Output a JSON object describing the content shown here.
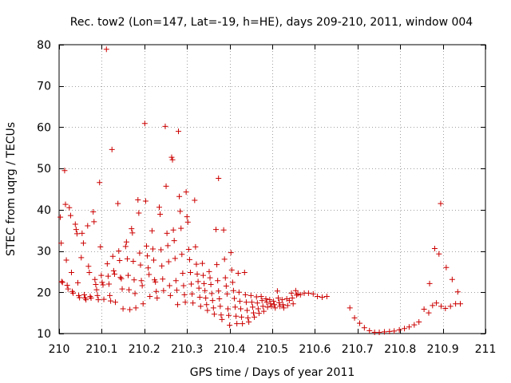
{
  "chart_data": {
    "type": "scatter",
    "title": "Rec. tow2 (Lon=147, Lat=-19, h=HE), days 209-210, 2011, window 004",
    "xlabel": "GPS time / Days of year 2011",
    "ylabel": "STEC from uqrg / TECUs",
    "xlim": [
      210,
      211
    ],
    "ylim": [
      10,
      80
    ],
    "xticks": [
      210,
      210.1,
      210.2,
      210.3,
      210.4,
      210.5,
      210.6,
      210.7,
      210.8,
      210.9,
      211
    ],
    "xtick_labels": [
      "210",
      "210.1",
      "210.2",
      "210.3",
      "210.4",
      "210.5",
      "210.6",
      "210.7",
      "210.8",
      "210.9",
      "211"
    ],
    "yticks": [
      10,
      20,
      30,
      40,
      50,
      60,
      70,
      80
    ],
    "ytick_labels": [
      "10",
      "20",
      "30",
      "40",
      "50",
      "60",
      "70",
      "80"
    ],
    "grid": true,
    "marker": "+",
    "color": "#cc0000",
    "series": [
      {
        "name": "STEC",
        "points": [
          [
            210.003,
            38.2
          ],
          [
            210.005,
            31.9
          ],
          [
            210.006,
            22.6
          ],
          [
            210.008,
            22.4
          ],
          [
            210.013,
            49.5
          ],
          [
            210.015,
            41.3
          ],
          [
            210.017,
            27.8
          ],
          [
            210.019,
            21.7
          ],
          [
            210.021,
            20.8
          ],
          [
            210.024,
            40.5
          ],
          [
            210.027,
            38.6
          ],
          [
            210.029,
            24.8
          ],
          [
            210.031,
            20.2
          ],
          [
            210.033,
            19.8
          ],
          [
            210.038,
            36.5
          ],
          [
            210.04,
            35.2
          ],
          [
            210.042,
            34.2
          ],
          [
            210.044,
            22.3
          ],
          [
            210.046,
            19.2
          ],
          [
            210.048,
            18.7
          ],
          [
            210.052,
            28.4
          ],
          [
            210.054,
            34.3
          ],
          [
            210.057,
            31.9
          ],
          [
            210.059,
            19.4
          ],
          [
            210.061,
            18.6
          ],
          [
            210.063,
            18.2
          ],
          [
            210.067,
            36.1
          ],
          [
            210.069,
            26.3
          ],
          [
            210.071,
            24.8
          ],
          [
            210.073,
            19.0
          ],
          [
            210.075,
            18.6
          ],
          [
            210.08,
            39.5
          ],
          [
            210.082,
            37.1
          ],
          [
            210.084,
            23.1
          ],
          [
            210.086,
            21.9
          ],
          [
            210.088,
            20.6
          ],
          [
            210.09,
            19.2
          ],
          [
            210.092,
            18.2
          ],
          [
            210.095,
            46.6
          ],
          [
            210.097,
            31.0
          ],
          [
            210.099,
            24.1
          ],
          [
            210.101,
            22.4
          ],
          [
            210.103,
            21.8
          ],
          [
            210.105,
            18.3
          ],
          [
            210.111,
            78.9
          ],
          [
            210.113,
            26.9
          ],
          [
            210.115,
            23.9
          ],
          [
            210.117,
            22.0
          ],
          [
            210.119,
            19.2
          ],
          [
            210.121,
            17.9
          ],
          [
            210.124,
            54.6
          ],
          [
            210.126,
            28.7
          ],
          [
            210.128,
            25.2
          ],
          [
            210.13,
            24.4
          ],
          [
            210.132,
            17.6
          ],
          [
            210.138,
            41.5
          ],
          [
            210.14,
            30.0
          ],
          [
            210.142,
            27.7
          ],
          [
            210.144,
            23.6
          ],
          [
            210.146,
            23.3
          ],
          [
            210.148,
            20.8
          ],
          [
            210.15,
            16.0
          ],
          [
            210.156,
            31.1
          ],
          [
            210.158,
            32.2
          ],
          [
            210.16,
            28.1
          ],
          [
            210.162,
            24.1
          ],
          [
            210.164,
            20.6
          ],
          [
            210.166,
            15.8
          ],
          [
            210.17,
            35.4
          ],
          [
            210.172,
            34.4
          ],
          [
            210.174,
            27.5
          ],
          [
            210.176,
            23.0
          ],
          [
            210.178,
            19.7
          ],
          [
            210.18,
            16.2
          ],
          [
            210.185,
            42.4
          ],
          [
            210.187,
            39.2
          ],
          [
            210.189,
            29.5
          ],
          [
            210.191,
            26.6
          ],
          [
            210.193,
            22.8
          ],
          [
            210.195,
            21.6
          ],
          [
            210.197,
            17.2
          ],
          [
            210.201,
            60.9
          ],
          [
            210.203,
            42.1
          ],
          [
            210.205,
            31.2
          ],
          [
            210.207,
            28.8
          ],
          [
            210.209,
            25.9
          ],
          [
            210.211,
            24.3
          ],
          [
            210.213,
            19.0
          ],
          [
            210.218,
            34.9
          ],
          [
            210.22,
            30.5
          ],
          [
            210.222,
            27.8
          ],
          [
            210.224,
            23.0
          ],
          [
            210.226,
            22.5
          ],
          [
            210.228,
            20.2
          ],
          [
            210.23,
            18.6
          ],
          [
            210.235,
            40.6
          ],
          [
            210.237,
            38.9
          ],
          [
            210.239,
            30.3
          ],
          [
            210.241,
            26.4
          ],
          [
            210.243,
            23.2
          ],
          [
            210.245,
            20.4
          ],
          [
            210.249,
            60.2
          ],
          [
            210.251,
            45.7
          ],
          [
            210.253,
            34.3
          ],
          [
            210.255,
            31.3
          ],
          [
            210.257,
            27.4
          ],
          [
            210.259,
            21.6
          ],
          [
            210.261,
            19.2
          ],
          [
            210.264,
            52.7
          ],
          [
            210.266,
            52.1
          ],
          [
            210.268,
            35.1
          ],
          [
            210.27,
            32.5
          ],
          [
            210.272,
            28.2
          ],
          [
            210.274,
            22.8
          ],
          [
            210.276,
            20.5
          ],
          [
            210.278,
            17.0
          ],
          [
            210.28,
            59.0
          ],
          [
            210.282,
            43.2
          ],
          [
            210.284,
            39.6
          ],
          [
            210.286,
            35.5
          ],
          [
            210.288,
            29.2
          ],
          [
            210.29,
            24.6
          ],
          [
            210.292,
            21.6
          ],
          [
            210.294,
            19.4
          ],
          [
            210.296,
            17.6
          ],
          [
            210.298,
            44.3
          ],
          [
            210.3,
            38.3
          ],
          [
            210.302,
            37.0
          ],
          [
            210.304,
            30.4
          ],
          [
            210.306,
            27.9
          ],
          [
            210.308,
            24.8
          ],
          [
            210.31,
            22.0
          ],
          [
            210.312,
            19.6
          ],
          [
            210.314,
            17.4
          ],
          [
            210.318,
            42.3
          ],
          [
            210.32,
            31.0
          ],
          [
            210.322,
            26.8
          ],
          [
            210.324,
            24.4
          ],
          [
            210.326,
            22.6
          ],
          [
            210.328,
            21.0
          ],
          [
            210.33,
            18.8
          ],
          [
            210.332,
            16.6
          ],
          [
            210.336,
            27.0
          ],
          [
            210.338,
            24.1
          ],
          [
            210.34,
            22.1
          ],
          [
            210.342,
            20.4
          ],
          [
            210.344,
            18.6
          ],
          [
            210.346,
            17.0
          ],
          [
            210.348,
            15.6
          ],
          [
            210.352,
            25.0
          ],
          [
            210.354,
            23.5
          ],
          [
            210.356,
            21.9
          ],
          [
            210.358,
            19.7
          ],
          [
            210.36,
            18.0
          ],
          [
            210.362,
            16.2
          ],
          [
            210.364,
            14.7
          ],
          [
            210.368,
            35.2
          ],
          [
            210.37,
            26.7
          ],
          [
            210.372,
            22.8
          ],
          [
            210.374,
            20.3
          ],
          [
            210.376,
            18.4
          ],
          [
            210.378,
            16.6
          ],
          [
            210.38,
            14.5
          ],
          [
            210.382,
            13.4
          ],
          [
            210.374,
            47.6
          ],
          [
            210.386,
            35.1
          ],
          [
            210.388,
            28.0
          ],
          [
            210.39,
            23.5
          ],
          [
            210.392,
            21.5
          ],
          [
            210.394,
            19.6
          ],
          [
            210.396,
            16.0
          ],
          [
            210.398,
            14.4
          ],
          [
            210.4,
            12.0
          ],
          [
            210.403,
            29.6
          ],
          [
            210.405,
            25.4
          ],
          [
            210.407,
            22.4
          ],
          [
            210.409,
            20.4
          ],
          [
            210.411,
            18.5
          ],
          [
            210.413,
            16.4
          ],
          [
            210.415,
            14.2
          ],
          [
            210.417,
            12.4
          ],
          [
            210.42,
            24.6
          ],
          [
            210.422,
            20.0
          ],
          [
            210.424,
            17.8
          ],
          [
            210.426,
            16.0
          ],
          [
            210.428,
            14.0
          ],
          [
            210.43,
            12.4
          ],
          [
            210.435,
            24.8
          ],
          [
            210.437,
            19.4
          ],
          [
            210.439,
            17.6
          ],
          [
            210.441,
            15.6
          ],
          [
            210.443,
            13.8
          ],
          [
            210.445,
            12.8
          ],
          [
            210.45,
            19.2
          ],
          [
            210.452,
            17.6
          ],
          [
            210.454,
            16.4
          ],
          [
            210.456,
            15.0
          ],
          [
            210.458,
            14.0
          ],
          [
            210.463,
            18.9
          ],
          [
            210.465,
            17.4
          ],
          [
            210.467,
            16.0
          ],
          [
            210.469,
            14.9
          ],
          [
            210.474,
            19.0
          ],
          [
            210.476,
            18.0
          ],
          [
            210.478,
            16.6
          ],
          [
            210.48,
            15.4
          ],
          [
            210.485,
            18.4
          ],
          [
            210.487,
            17.6
          ],
          [
            210.489,
            16.4
          ],
          [
            210.494,
            18.2
          ],
          [
            210.496,
            17.2
          ],
          [
            210.498,
            16.6
          ],
          [
            210.503,
            17.8
          ],
          [
            210.505,
            17.0
          ],
          [
            210.507,
            16.2
          ],
          [
            210.512,
            20.3
          ],
          [
            210.514,
            18.6
          ],
          [
            210.516,
            17.5
          ],
          [
            210.518,
            16.6
          ],
          [
            210.523,
            18.2
          ],
          [
            210.525,
            17.0
          ],
          [
            210.527,
            16.2
          ],
          [
            210.534,
            18.4
          ],
          [
            210.536,
            16.8
          ],
          [
            210.54,
            18.0
          ],
          [
            210.545,
            19.8
          ],
          [
            210.547,
            18.6
          ],
          [
            210.549,
            17.2
          ],
          [
            210.555,
            20.4
          ],
          [
            210.557,
            19.3
          ],
          [
            210.56,
            19.6
          ],
          [
            210.566,
            19.4
          ],
          [
            210.575,
            19.8
          ],
          [
            210.585,
            19.8
          ],
          [
            210.596,
            19.6
          ],
          [
            210.606,
            19.0
          ],
          [
            210.617,
            18.8
          ],
          [
            210.628,
            19.0
          ],
          [
            210.682,
            16.2
          ],
          [
            210.693,
            13.8
          ],
          [
            210.705,
            12.5
          ],
          [
            210.716,
            11.4
          ],
          [
            210.728,
            10.7
          ],
          [
            210.74,
            10.3
          ],
          [
            210.751,
            10.3
          ],
          [
            210.763,
            10.4
          ],
          [
            210.775,
            10.5
          ],
          [
            210.786,
            10.6
          ],
          [
            210.798,
            10.9
          ],
          [
            210.81,
            11.2
          ],
          [
            210.821,
            11.6
          ],
          [
            210.833,
            12.1
          ],
          [
            210.844,
            12.8
          ],
          [
            210.856,
            15.9
          ],
          [
            210.867,
            15.0
          ],
          [
            210.869,
            22.1
          ],
          [
            210.876,
            16.8
          ],
          [
            210.881,
            30.6
          ],
          [
            210.885,
            17.4
          ],
          [
            210.891,
            29.3
          ],
          [
            210.895,
            41.5
          ],
          [
            210.896,
            16.6
          ],
          [
            210.906,
            16.1
          ],
          [
            210.908,
            26.0
          ],
          [
            210.918,
            16.6
          ],
          [
            210.922,
            23.1
          ],
          [
            210.93,
            17.2
          ],
          [
            210.935,
            20.1
          ],
          [
            210.941,
            17.2
          ]
        ]
      }
    ]
  }
}
